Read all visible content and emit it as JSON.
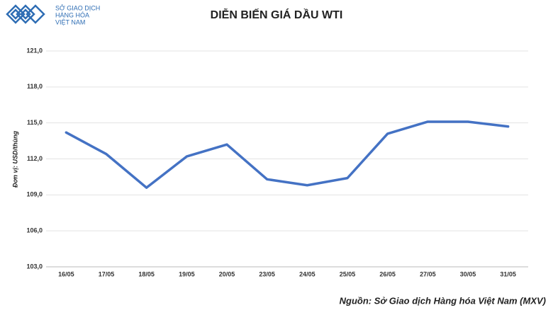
{
  "logo": {
    "lines": [
      "SỞ GIAO DỊCH",
      "HÀNG HÓA",
      "VIỆT NAM"
    ]
  },
  "chart_data": {
    "type": "line",
    "title": "DIỄN BIẾN GIÁ DẦU WTI",
    "ylabel": "Đơn vị: USD/thùng",
    "source": "Nguồn: Sở Giao dịch Hàng hóa Việt Nam (MXV)",
    "categories": [
      "16/05",
      "17/05",
      "18/05",
      "19/05",
      "20/05",
      "23/05",
      "24/05",
      "25/05",
      "26/05",
      "27/05",
      "30/05",
      "31/05"
    ],
    "values": [
      114.2,
      112.4,
      109.6,
      112.2,
      113.2,
      110.3,
      109.8,
      110.4,
      114.1,
      115.1,
      115.1,
      114.7
    ],
    "color": "#4472c4",
    "ylim": [
      103,
      121
    ],
    "yticks": [
      {
        "value": 103,
        "label": "103,0"
      },
      {
        "value": 106,
        "label": "106,0"
      },
      {
        "value": 109,
        "label": "109,0"
      },
      {
        "value": 112,
        "label": "112,0"
      },
      {
        "value": 115,
        "label": "115,0"
      },
      {
        "value": 118,
        "label": "118,0"
      },
      {
        "value": 121,
        "label": "121,0"
      }
    ],
    "grid": true
  }
}
